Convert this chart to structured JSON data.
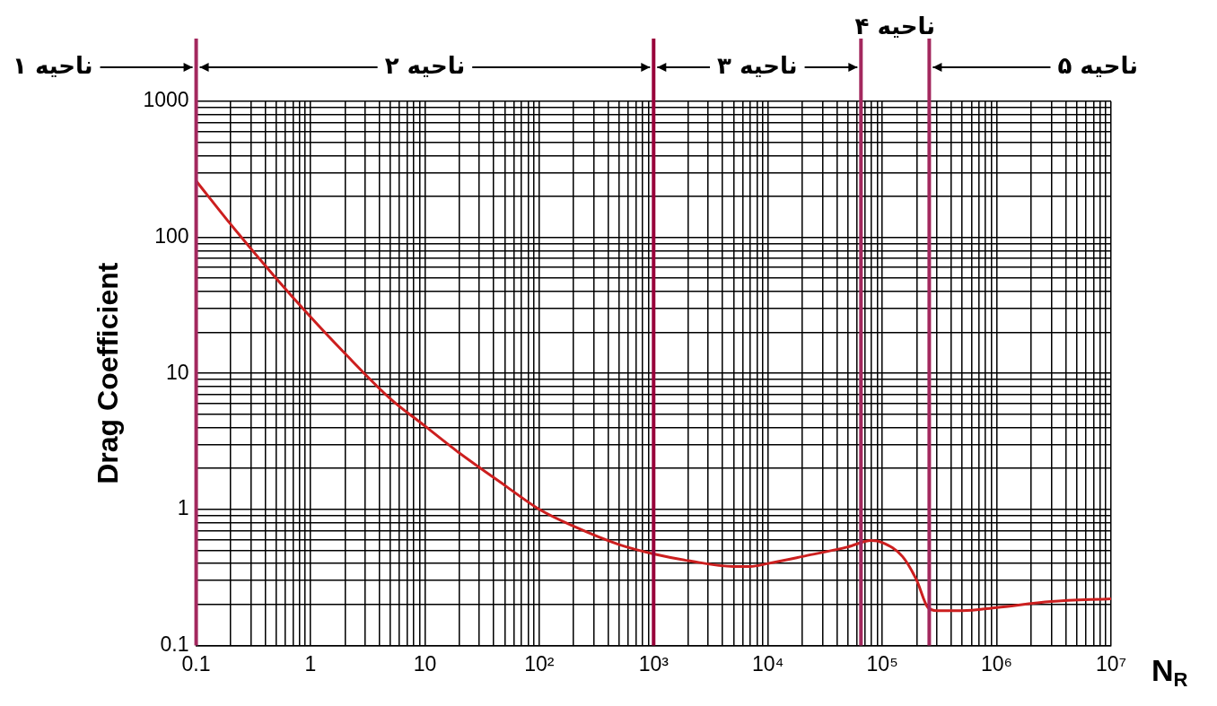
{
  "chart_data": {
    "type": "line",
    "xlabel": "N$_{R}$",
    "ylabel": "Drag Coefficient",
    "log": "xy",
    "grid": true,
    "marker": "none",
    "legend": false,
    "xlim": [
      0.1,
      10000000
    ],
    "ylim": [
      0.1,
      1000
    ],
    "xticks": [
      0.1,
      {
        "value": 0.2,
        "label": null
      },
      {
        "value": 0.3,
        "label": null
      },
      {
        "value": 0.4,
        "label": null
      },
      {
        "value": 0.5,
        "label": null
      },
      {
        "value": 0.6,
        "label": null
      },
      {
        "value": 0.7,
        "label": null
      },
      {
        "value": 0.8,
        "label": null
      },
      {
        "value": 0.9,
        "label": null
      },
      1,
      {
        "value": 2,
        "label": null
      },
      {
        "value": 3,
        "label": null
      },
      {
        "value": 4,
        "label": null
      },
      {
        "value": 5,
        "label": null
      },
      {
        "value": 6,
        "label": null
      },
      {
        "value": 7,
        "label": null
      },
      {
        "value": 8,
        "label": null
      },
      {
        "value": 9,
        "label": null
      },
      10,
      {
        "value": 20,
        "label": null
      },
      {
        "value": 30,
        "label": null
      },
      {
        "value": 40,
        "label": null
      },
      {
        "value": 50,
        "label": null
      },
      {
        "value": 60,
        "label": null
      },
      {
        "value": 70,
        "label": null
      },
      {
        "value": 80,
        "label": null
      },
      {
        "value": 90,
        "label": null
      },
      {
        "value": 100,
        "label": "10²"
      },
      {
        "value": 200,
        "label": null
      },
      {
        "value": 300,
        "label": null
      },
      {
        "value": 400,
        "label": null
      },
      {
        "value": 500,
        "label": null
      },
      {
        "value": 600,
        "label": null
      },
      {
        "value": 700,
        "label": null
      },
      {
        "value": 800,
        "label": null
      },
      {
        "value": 900,
        "label": null
      },
      {
        "value": 1000,
        "label": "10³"
      },
      {
        "value": 2000,
        "label": null
      },
      {
        "value": 3000,
        "label": null
      },
      {
        "value": 4000,
        "label": null
      },
      {
        "value": 5000,
        "label": null
      },
      {
        "value": 6000,
        "label": null
      },
      {
        "value": 7000,
        "label": null
      },
      {
        "value": 8000,
        "label": null
      },
      {
        "value": 9000,
        "label": null
      },
      {
        "value": 10000,
        "label": "10⁴"
      },
      {
        "value": 20000,
        "label": null
      },
      {
        "value": 30000,
        "label": null
      },
      {
        "value": 40000,
        "label": null
      },
      {
        "value": 50000,
        "label": null
      },
      {
        "value": 60000,
        "label": null
      },
      {
        "value": 70000,
        "label": null
      },
      {
        "value": 80000,
        "label": null
      },
      {
        "value": 90000,
        "label": null
      },
      {
        "value": 100000,
        "label": "10⁵"
      },
      {
        "value": 200000,
        "label": null
      },
      {
        "value": 300000,
        "label": null
      },
      {
        "value": 400000,
        "label": null
      },
      {
        "value": 500000,
        "label": null
      },
      {
        "value": 600000,
        "label": null
      },
      {
        "value": 700000,
        "label": null
      },
      {
        "value": 800000,
        "label": null
      },
      {
        "value": 900000,
        "label": null
      },
      {
        "value": 1000000,
        "label": "10⁶"
      },
      {
        "value": 2000000,
        "label": null
      },
      {
        "value": 3000000,
        "label": null
      },
      {
        "value": 4000000,
        "label": null
      },
      {
        "value": 5000000,
        "label": null
      },
      {
        "value": 6000000,
        "label": null
      },
      {
        "value": 7000000,
        "label": null
      },
      {
        "value": 8000000,
        "label": null
      },
      {
        "value": 9000000,
        "label": null
      },
      {
        "value": 10000000,
        "label": "10⁷"
      }
    ],
    "yticks": [
      0.1,
      {
        "value": 0.2,
        "label": null
      },
      {
        "value": 0.3,
        "label": null
      },
      {
        "value": 0.4,
        "label": null
      },
      {
        "value": 0.5,
        "label": null
      },
      {
        "value": 0.6,
        "label": null
      },
      {
        "value": 0.7,
        "label": null
      },
      {
        "value": 0.8,
        "label": null
      },
      {
        "value": 0.9,
        "label": null
      },
      1,
      {
        "value": 2,
        "label": null
      },
      {
        "value": 3,
        "label": null
      },
      {
        "value": 4,
        "label": null
      },
      {
        "value": 5,
        "label": null
      },
      {
        "value": 6,
        "label": null
      },
      {
        "value": 7,
        "label": null
      },
      {
        "value": 8,
        "label": null
      },
      {
        "value": 9,
        "label": null
      },
      10,
      {
        "value": 20,
        "label": null
      },
      {
        "value": 30,
        "label": null
      },
      {
        "value": 40,
        "label": null
      },
      {
        "value": 50,
        "label": null
      },
      {
        "value": 60,
        "label": null
      },
      {
        "value": 70,
        "label": null
      },
      {
        "value": 80,
        "label": null
      },
      {
        "value": 90,
        "label": null
      },
      100,
      {
        "value": 200,
        "label": null
      },
      {
        "value": 300,
        "label": null
      },
      {
        "value": 400,
        "label": null
      },
      {
        "value": 500,
        "label": null
      },
      {
        "value": 600,
        "label": null
      },
      {
        "value": 700,
        "label": null
      },
      {
        "value": 800,
        "label": null
      },
      {
        "value": 900,
        "label": null
      },
      1000
    ],
    "series": [
      {
        "color": "#cc1f1f",
        "x": [
          0.1,
          0.2,
          0.5,
          1,
          2,
          5,
          10,
          20,
          50,
          100,
          200,
          500,
          1000,
          2000,
          5000,
          7000,
          10000,
          20000,
          50000,
          80000,
          100000,
          150000,
          200000,
          250000,
          300000,
          500000,
          1000000,
          3000000,
          10000000
        ],
        "values": [
          260,
          125,
          50,
          26,
          14,
          6.5,
          4.1,
          2.6,
          1.5,
          1.0,
          0.75,
          0.55,
          0.47,
          0.42,
          0.38,
          0.38,
          0.4,
          0.45,
          0.53,
          0.59,
          0.57,
          0.45,
          0.3,
          0.19,
          0.18,
          0.18,
          0.19,
          0.21,
          0.22
        ]
      }
    ],
    "ref_lines": [
      {
        "axis": "x",
        "value": 0.1,
        "color": "#a3285e"
      },
      {
        "axis": "x",
        "value": 1000,
        "color": "#99003a"
      },
      {
        "axis": "x",
        "value": 65000,
        "color": "#a3285e"
      },
      {
        "axis": "x",
        "value": 257000,
        "color": "#a3285e"
      }
    ],
    "annotations": [
      "ناحیه ۱",
      "ناحیه ۲",
      "ناحیه ۳",
      "ناحیه ۴",
      "ناحیه ۵"
    ]
  }
}
